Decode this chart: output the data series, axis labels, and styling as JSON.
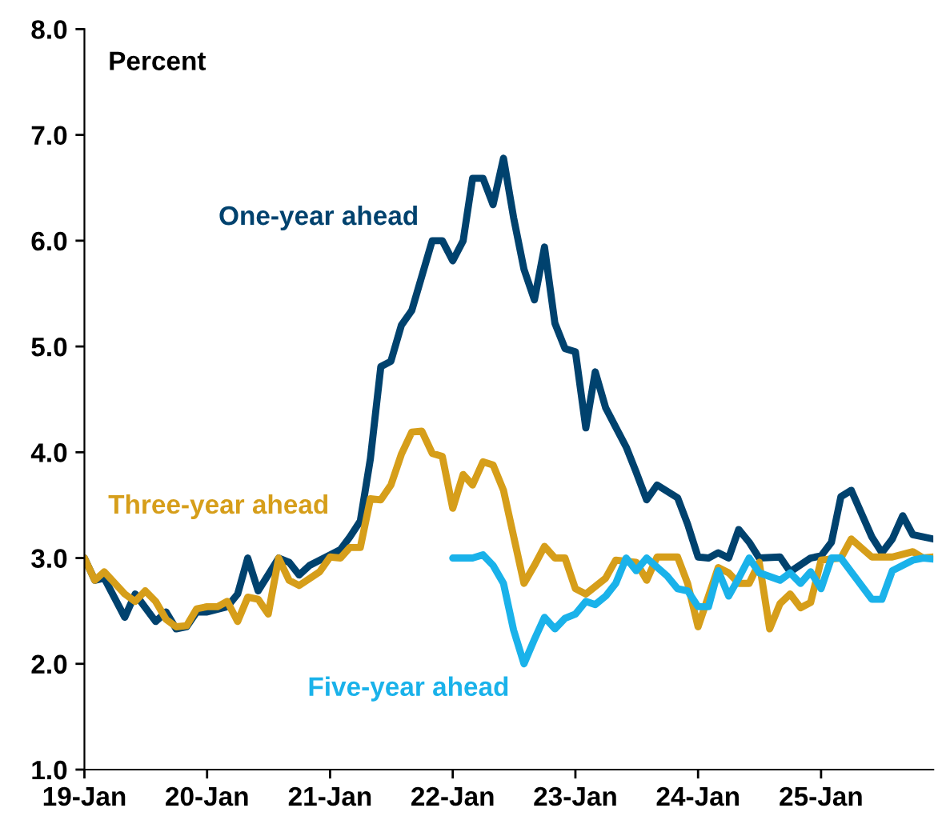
{
  "chart_data": {
    "type": "line",
    "ylabel": "Percent",
    "xlim": [
      "2019-01",
      "2025-12"
    ],
    "ylim": [
      1.0,
      8.0
    ],
    "xticks": [
      {
        "value": "2019-01",
        "label": "19-Jan"
      },
      {
        "value": "2020-01",
        "label": "20-Jan"
      },
      {
        "value": "2021-01",
        "label": "21-Jan"
      },
      {
        "value": "2022-01",
        "label": "22-Jan"
      },
      {
        "value": "2023-01",
        "label": "23-Jan"
      },
      {
        "value": "2024-01",
        "label": "24-Jan"
      },
      {
        "value": "2025-01",
        "label": "25-Jan"
      }
    ],
    "yticks": [
      {
        "value": 1,
        "label": "1.0"
      },
      {
        "value": 2,
        "label": "2.0"
      },
      {
        "value": 3,
        "label": "3.0"
      },
      {
        "value": 4,
        "label": "4.0"
      },
      {
        "value": 5,
        "label": "5.0"
      },
      {
        "value": 6,
        "label": "6.0"
      },
      {
        "value": 7,
        "label": "7.0"
      },
      {
        "value": 8,
        "label": "8.0"
      }
    ],
    "grid": false,
    "legend": false,
    "marker": "none",
    "line_style": "solid",
    "series": [
      {
        "name": "One-year ahead",
        "color": "#00426e",
        "x": [
          "2019-01",
          "2019-02",
          "2019-03",
          "2019-05",
          "2019-06",
          "2019-08",
          "2019-09",
          "2019-10",
          "2019-11",
          "2019-12",
          "2020-01",
          "2020-03",
          "2020-04",
          "2020-05",
          "2020-06",
          "2020-08",
          "2020-09",
          "2020-10",
          "2020-11",
          "2021-01",
          "2021-02",
          "2021-03",
          "2021-04",
          "2021-05",
          "2021-06",
          "2021-07",
          "2021-08",
          "2021-09",
          "2021-11",
          "2021-12",
          "2022-01",
          "2022-02",
          "2022-03",
          "2022-04",
          "2022-05",
          "2022-06",
          "2022-07",
          "2022-08",
          "2022-09",
          "2022-10",
          "2022-11",
          "2022-12",
          "2023-01",
          "2023-02",
          "2023-03",
          "2023-04",
          "2023-06",
          "2023-07",
          "2023-08",
          "2023-09",
          "2023-11",
          "2023-12",
          "2024-01",
          "2024-02",
          "2024-03",
          "2024-04",
          "2024-05",
          "2024-06",
          "2024-07",
          "2024-09",
          "2024-10",
          "2024-12",
          "2025-01",
          "2025-02",
          "2025-03",
          "2025-04",
          "2025-06",
          "2025-07",
          "2025-08",
          "2025-09",
          "2025-10",
          "2025-12"
        ],
        "values": [
          3.0,
          2.79,
          2.81,
          2.44,
          2.66,
          2.4,
          2.49,
          2.33,
          2.35,
          2.49,
          2.49,
          2.54,
          2.66,
          3.0,
          2.69,
          3.0,
          2.96,
          2.84,
          2.93,
          3.03,
          3.08,
          3.2,
          3.35,
          3.94,
          4.81,
          4.86,
          5.2,
          5.34,
          6.0,
          6.0,
          5.81,
          6.0,
          6.59,
          6.59,
          6.34,
          6.78,
          6.22,
          5.73,
          5.44,
          5.94,
          5.22,
          4.98,
          4.95,
          4.23,
          4.76,
          4.42,
          4.05,
          3.81,
          3.55,
          3.69,
          3.57,
          3.32,
          3.01,
          3.0,
          3.05,
          3.0,
          3.27,
          3.15,
          3.0,
          3.01,
          2.87,
          3.0,
          3.02,
          3.15,
          3.58,
          3.64,
          3.2,
          3.05,
          3.18,
          3.4,
          3.22,
          3.18
        ]
      },
      {
        "name": "Three-year ahead",
        "color": "#d69e1a",
        "x": [
          "2019-01",
          "2019-02",
          "2019-03",
          "2019-05",
          "2019-06",
          "2019-07",
          "2019-08",
          "2019-09",
          "2019-10",
          "2019-11",
          "2019-12",
          "2020-01",
          "2020-02",
          "2020-03",
          "2020-04",
          "2020-05",
          "2020-06",
          "2020-07",
          "2020-08",
          "2020-09",
          "2020-10",
          "2020-12",
          "2021-01",
          "2021-02",
          "2021-03",
          "2021-04",
          "2021-05",
          "2021-06",
          "2021-07",
          "2021-08",
          "2021-09",
          "2021-10",
          "2021-11",
          "2021-12",
          "2022-01",
          "2022-02",
          "2022-03",
          "2022-04",
          "2022-05",
          "2022-06",
          "2022-08",
          "2022-09",
          "2022-10",
          "2022-11",
          "2022-12",
          "2023-01",
          "2023-02",
          "2023-04",
          "2023-05",
          "2023-07",
          "2023-08",
          "2023-09",
          "2023-11",
          "2023-12",
          "2024-01",
          "2024-03",
          "2024-04",
          "2024-05",
          "2024-06",
          "2024-07",
          "2024-08",
          "2024-09",
          "2024-10",
          "2024-11",
          "2024-12",
          "2025-01",
          "2025-03",
          "2025-04",
          "2025-06",
          "2025-08",
          "2025-10",
          "2025-11",
          "2025-12"
        ],
        "values": [
          3.0,
          2.79,
          2.87,
          2.66,
          2.59,
          2.69,
          2.59,
          2.42,
          2.35,
          2.36,
          2.52,
          2.54,
          2.54,
          2.59,
          2.4,
          2.63,
          2.61,
          2.47,
          3.0,
          2.79,
          2.74,
          2.87,
          3.01,
          3.0,
          3.1,
          3.1,
          3.56,
          3.55,
          3.69,
          3.98,
          4.19,
          4.2,
          3.99,
          3.96,
          3.47,
          3.79,
          3.69,
          3.91,
          3.88,
          3.64,
          2.76,
          2.93,
          3.11,
          3.0,
          3.0,
          2.71,
          2.66,
          2.81,
          2.98,
          2.96,
          2.79,
          3.01,
          3.01,
          2.76,
          2.35,
          2.91,
          2.86,
          2.76,
          2.76,
          2.96,
          2.33,
          2.57,
          2.66,
          2.53,
          2.58,
          2.98,
          3.0,
          3.18,
          3.01,
          3.01,
          3.06,
          3.0,
          3.01
        ]
      },
      {
        "name": "Five-year ahead",
        "color": "#1ab2ea",
        "x": [
          "2022-01",
          "2022-03",
          "2022-04",
          "2022-05",
          "2022-06",
          "2022-07",
          "2022-08",
          "2022-09",
          "2022-10",
          "2022-11",
          "2022-12",
          "2023-01",
          "2023-02",
          "2023-03",
          "2023-04",
          "2023-05",
          "2023-06",
          "2023-07",
          "2023-08",
          "2023-10",
          "2023-11",
          "2023-12",
          "2024-01",
          "2024-02",
          "2024-03",
          "2024-04",
          "2024-05",
          "2024-06",
          "2024-07",
          "2024-09",
          "2024-10",
          "2024-11",
          "2024-12",
          "2025-01",
          "2025-02",
          "2025-03",
          "2025-06",
          "2025-07",
          "2025-08",
          "2025-10",
          "2025-11",
          "2025-12"
        ],
        "values": [
          3.0,
          3.0,
          3.03,
          2.93,
          2.76,
          2.32,
          2.0,
          2.23,
          2.44,
          2.33,
          2.43,
          2.47,
          2.59,
          2.56,
          2.64,
          2.76,
          3.0,
          2.88,
          3.0,
          2.83,
          2.71,
          2.69,
          2.54,
          2.54,
          2.88,
          2.64,
          2.81,
          3.0,
          2.86,
          2.79,
          2.86,
          2.76,
          2.87,
          2.71,
          3.0,
          3.0,
          2.61,
          2.61,
          2.88,
          2.98,
          3.0,
          2.99
        ]
      }
    ]
  }
}
